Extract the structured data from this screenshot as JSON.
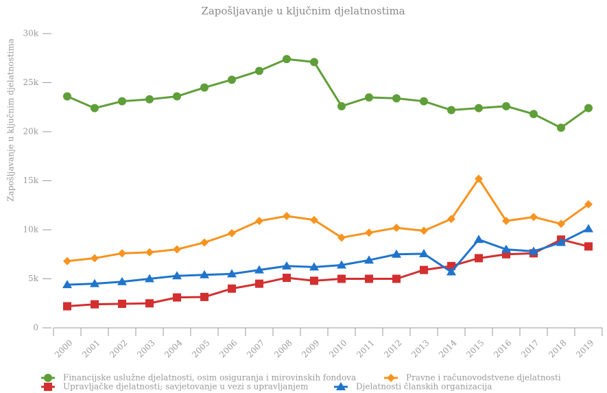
{
  "chart_data": {
    "type": "line",
    "title": "Zapošljavanje u ključnim djelatnostima",
    "y_label": "Zapošljavanje u ključnim djelatnostima",
    "categories": [
      "2000",
      "2001",
      "2002",
      "2003",
      "2004",
      "2005",
      "2006",
      "2007",
      "2008",
      "2009",
      "2010",
      "2011",
      "2012",
      "2013",
      "2014",
      "2015",
      "2016",
      "2017",
      "2018",
      "2019"
    ],
    "ylim": [
      0,
      30000
    ],
    "yticks": [
      0,
      {
        "value": 5000,
        "label": "5k"
      },
      {
        "value": 10000,
        "label": "10k"
      },
      {
        "value": 15000,
        "label": "15k"
      },
      {
        "value": 20000,
        "label": "20k"
      },
      {
        "value": 25000,
        "label": "25k"
      },
      {
        "value": 30000,
        "label": "30k"
      }
    ],
    "series": [
      {
        "name": "Financijske uslužne djelatnosti, osim osiguranja i mirovinskih fondova",
        "color": "#5f9e38",
        "marker": "circle",
        "values": [
          23600,
          22400,
          23100,
          23300,
          23600,
          24500,
          25300,
          26200,
          27400,
          27100,
          22600,
          23500,
          23400,
          23100,
          22200,
          22400,
          22600,
          21800,
          20400,
          22400
        ]
      },
      {
        "name": "Pravne i računovodstvene djelatnosti",
        "color": "#f7931e",
        "marker": "diamond",
        "values": [
          6800,
          7100,
          7600,
          7700,
          8000,
          8700,
          9650,
          10900,
          11400,
          11000,
          9200,
          9700,
          10200,
          9900,
          11100,
          15200,
          10900,
          11300,
          10600,
          12600
        ]
      },
      {
        "name": "Upravljačke djelatnosti; savjetovanje u vezi s upravljanjem",
        "color": "#d32f2f",
        "marker": "square",
        "values": [
          2200,
          2400,
          2450,
          2500,
          3100,
          3150,
          4000,
          4500,
          5100,
          4800,
          5000,
          5000,
          5000,
          5900,
          6300,
          7100,
          7500,
          7600,
          9000,
          8300
        ]
      },
      {
        "name": "Djelatnosti članskih organizacija",
        "color": "#1f74cc",
        "marker": "triangle",
        "values": [
          4400,
          4500,
          4700,
          5000,
          5300,
          5400,
          5500,
          5900,
          6300,
          6200,
          6400,
          6900,
          7500,
          7550,
          5700,
          9000,
          8000,
          7800,
          8700,
          10100
        ]
      }
    ]
  }
}
